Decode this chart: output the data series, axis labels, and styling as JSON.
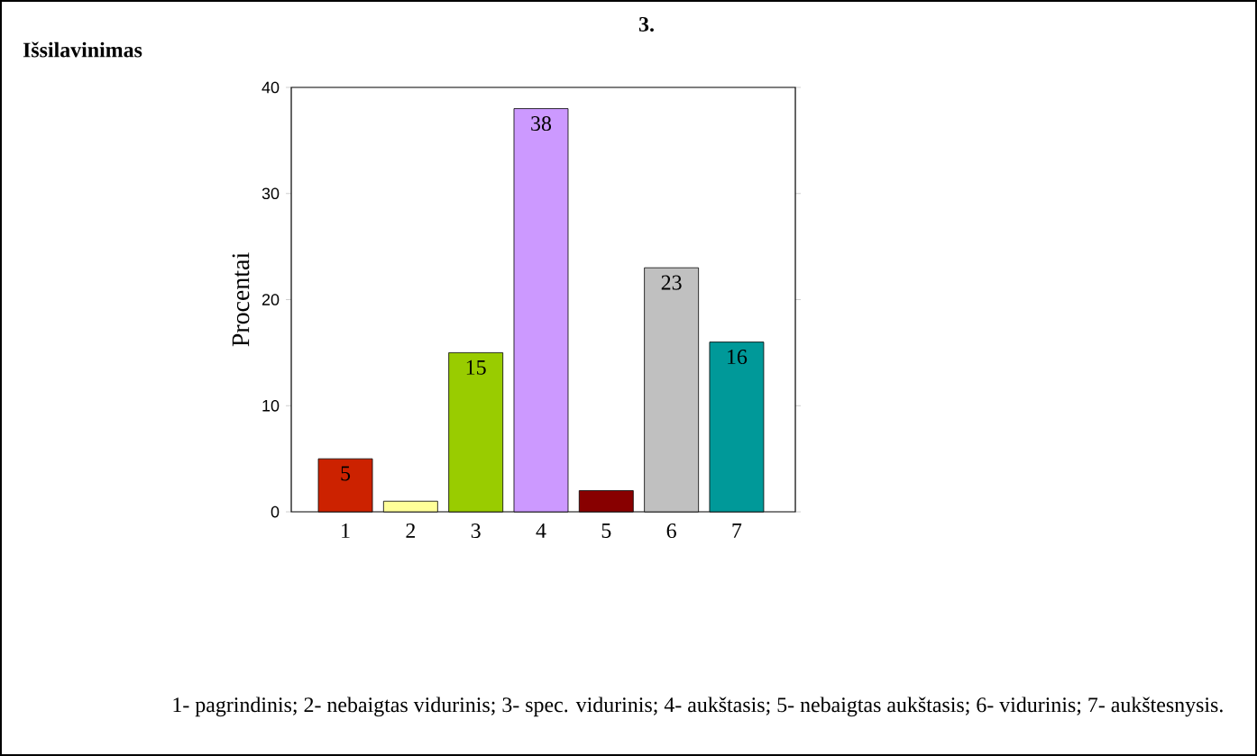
{
  "chart_data": {
    "type": "bar",
    "title": "3.",
    "subtitle": "Išsilavinimas",
    "ylabel": "Procentai",
    "categories": [
      "1",
      "2",
      "3",
      "4",
      "5",
      "6",
      "7"
    ],
    "values": [
      5,
      1,
      15,
      38,
      2,
      23,
      16
    ],
    "value_labels": [
      "5",
      null,
      "15",
      "38",
      null,
      "23",
      "16"
    ],
    "colors": [
      "#cc2200",
      "#ffff99",
      "#99cc00",
      "#cc99ff",
      "#880000",
      "#c0c0c0",
      "#009999"
    ],
    "ylim": [
      0,
      40
    ],
    "yticks": [
      0,
      10,
      20,
      30,
      40
    ],
    "grid": false,
    "annotations": [
      "1- pagrindinis; 2- nebaigtas vidurinis; 3- spec. vidurinis; 4- aukštasis; 5- nebaigtas aukštasis; 6- vidurinis; 7- aukštesnysis."
    ]
  }
}
